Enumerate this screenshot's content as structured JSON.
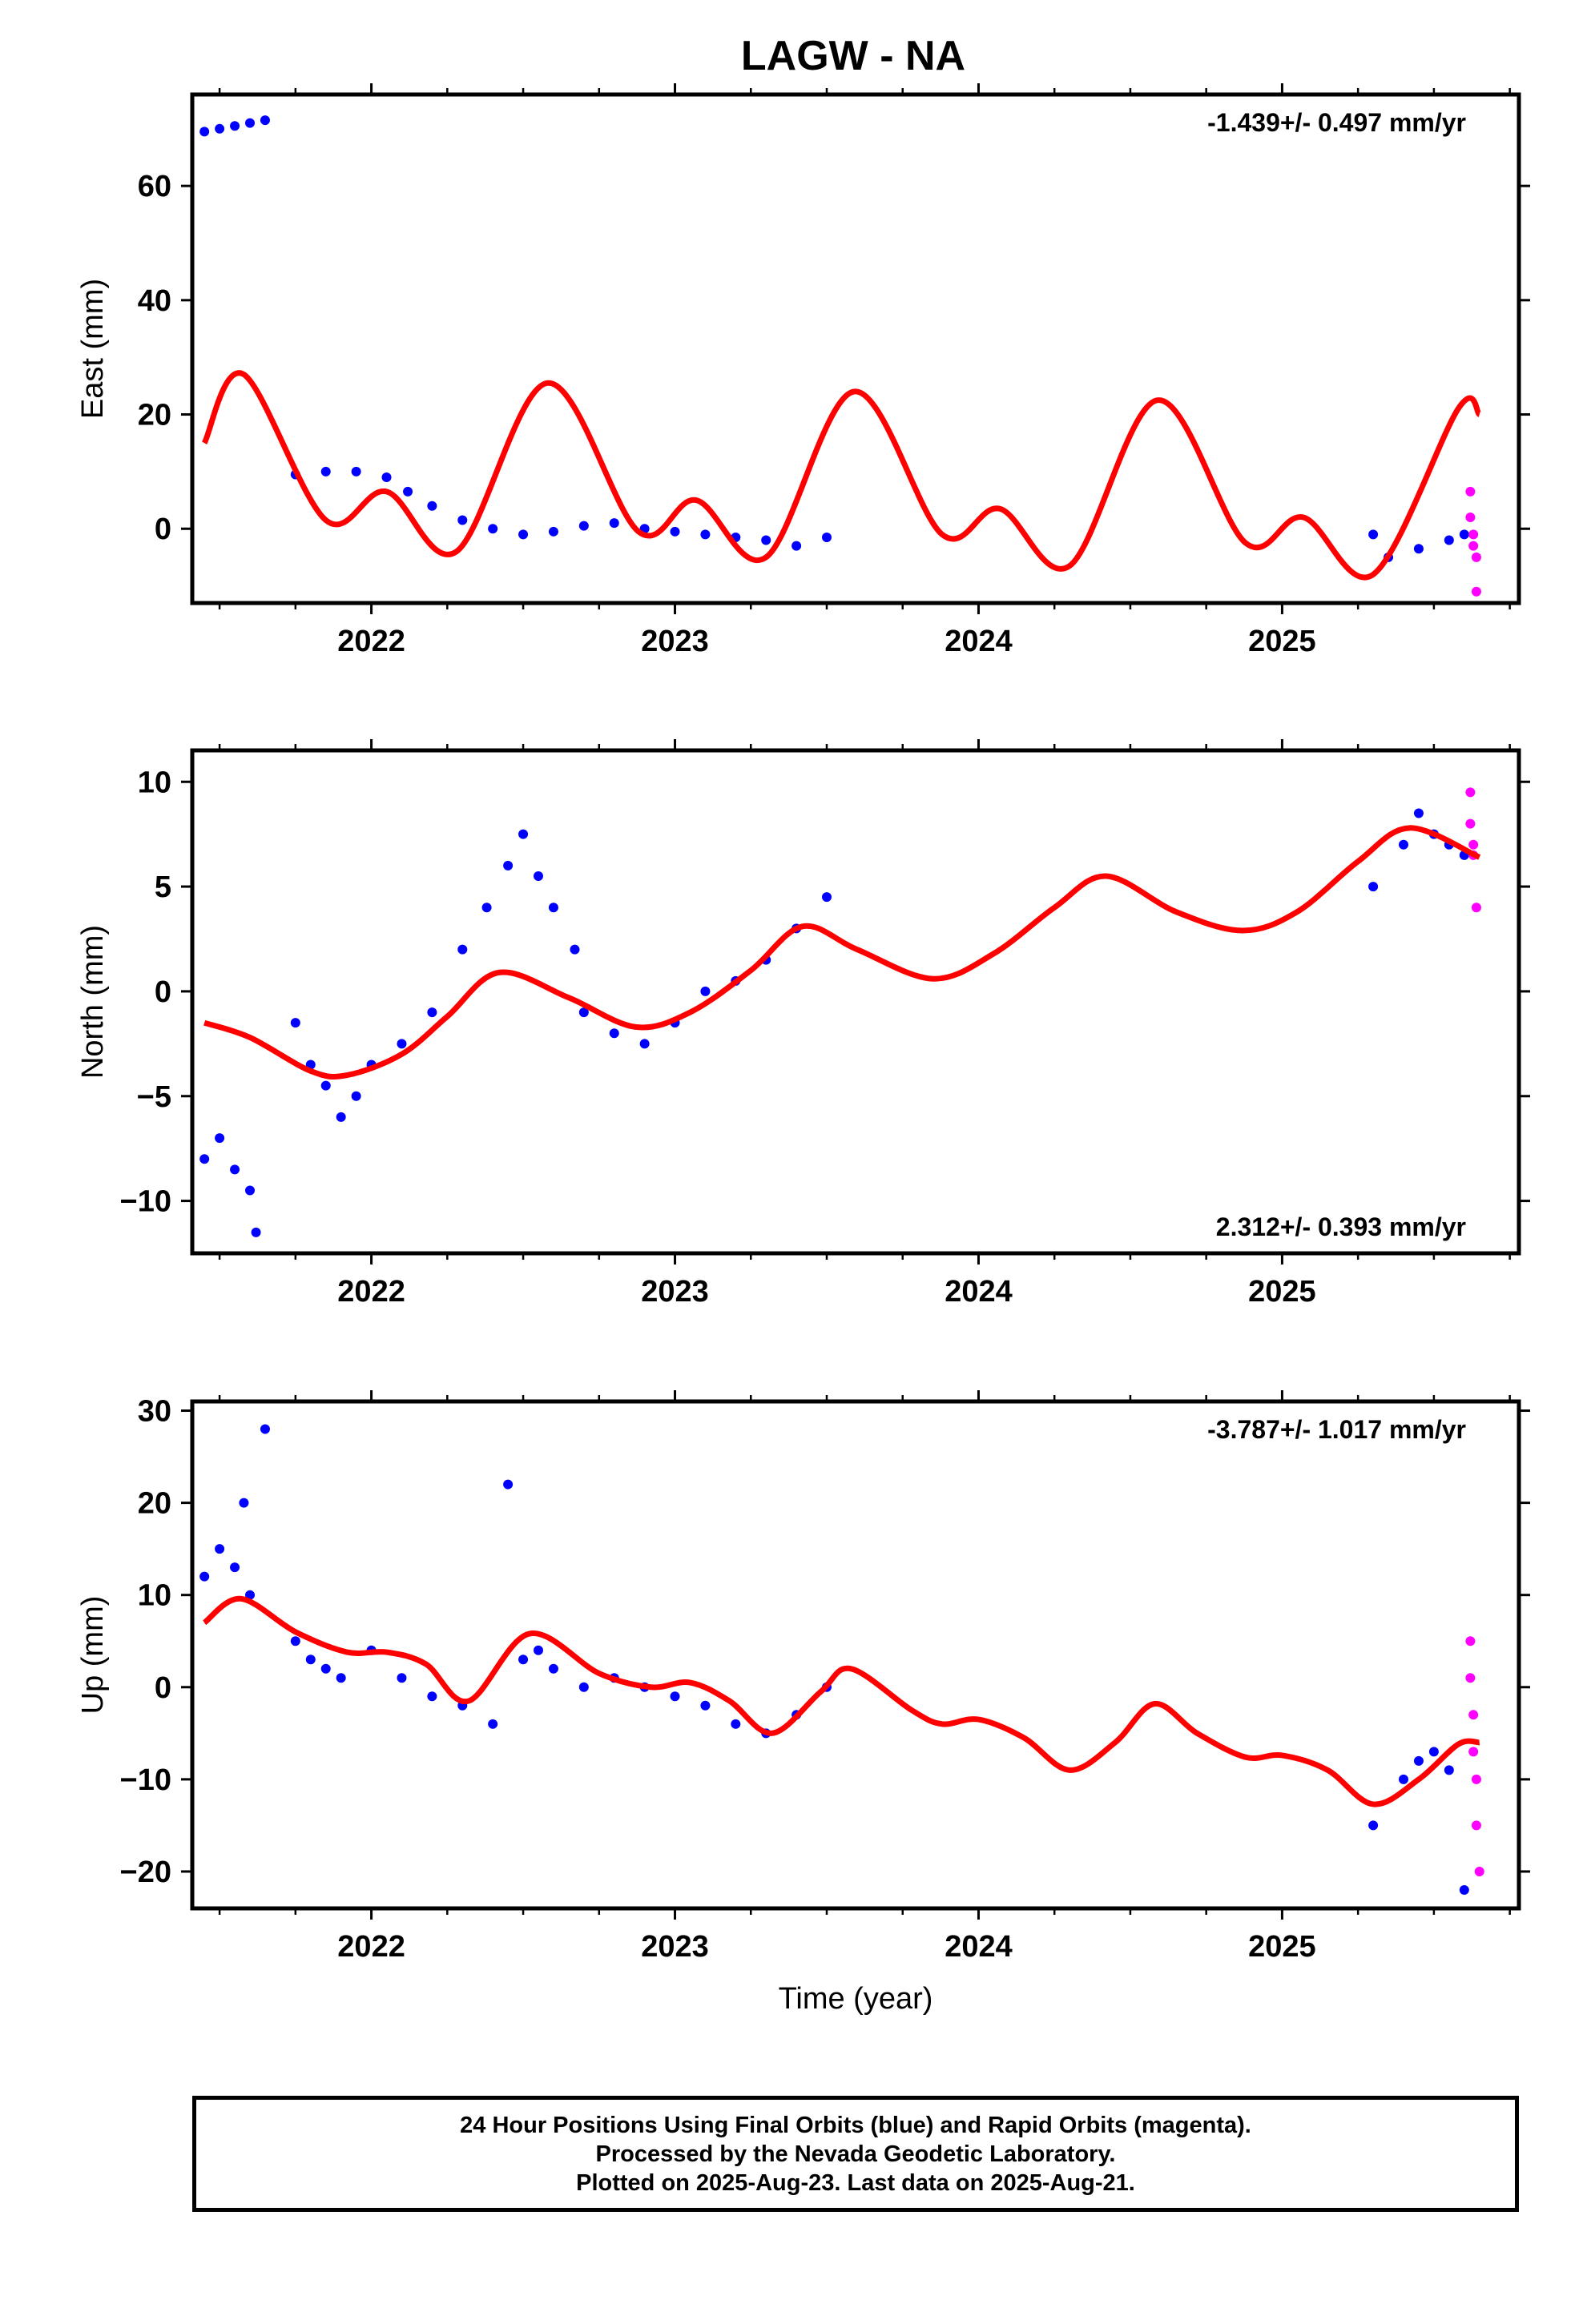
{
  "title": "LAGW - NA",
  "colors": {
    "final": "#0000ff",
    "rapid": "#ff00ff",
    "model": "#ff0000",
    "axis": "#000000"
  },
  "footer": {
    "line1": "24 Hour Positions Using Final Orbits (blue) and Rapid Orbits (magenta).",
    "line2": "Processed by the Nevada Geodetic Laboratory.",
    "line3": "Plotted on 2025-Aug-23. Last data on 2025-Aug-21."
  },
  "chart_data": [
    {
      "type": "scatter",
      "ylabel": "East (mm)",
      "xlabel": "",
      "xlim": [
        2021.41,
        2025.78
      ],
      "ylim": [
        -13,
        76
      ],
      "xticks": [
        2022,
        2023,
        2024,
        2025
      ],
      "yticks": [
        0,
        20,
        40,
        60
      ],
      "rate_text": "-1.439+/- 0.497 mm/yr",
      "rate_position": "top-right",
      "final_orbits": [
        {
          "x": 2021.45,
          "y": 69.5
        },
        {
          "x": 2021.5,
          "y": 70.0
        },
        {
          "x": 2021.55,
          "y": 70.5
        },
        {
          "x": 2021.6,
          "y": 71.0
        },
        {
          "x": 2021.65,
          "y": 71.5
        },
        {
          "x": 2021.75,
          "y": 9.5
        },
        {
          "x": 2021.85,
          "y": 10.0
        },
        {
          "x": 2021.95,
          "y": 10.0
        },
        {
          "x": 2022.05,
          "y": 9.0
        },
        {
          "x": 2022.12,
          "y": 6.5
        },
        {
          "x": 2022.2,
          "y": 4.0
        },
        {
          "x": 2022.3,
          "y": 1.5
        },
        {
          "x": 2022.4,
          "y": 0.0
        },
        {
          "x": 2022.5,
          "y": -1.0
        },
        {
          "x": 2022.6,
          "y": -0.5
        },
        {
          "x": 2022.7,
          "y": 0.5
        },
        {
          "x": 2022.8,
          "y": 1.0
        },
        {
          "x": 2022.9,
          "y": 0.0
        },
        {
          "x": 2023.0,
          "y": -0.5
        },
        {
          "x": 2023.1,
          "y": -1.0
        },
        {
          "x": 2023.2,
          "y": -1.5
        },
        {
          "x": 2023.3,
          "y": -2.0
        },
        {
          "x": 2023.4,
          "y": -3.0
        },
        {
          "x": 2023.5,
          "y": -1.5
        },
        {
          "x": 2025.3,
          "y": -1.0
        },
        {
          "x": 2025.35,
          "y": -5.0
        },
        {
          "x": 2025.45,
          "y": -3.5
        },
        {
          "x": 2025.55,
          "y": -2.0
        },
        {
          "x": 2025.6,
          "y": -1.0
        }
      ],
      "rapid_orbits": [
        {
          "x": 2025.62,
          "y": 6.5
        },
        {
          "x": 2025.62,
          "y": 2.0
        },
        {
          "x": 2025.63,
          "y": -1.0
        },
        {
          "x": 2025.63,
          "y": -3.0
        },
        {
          "x": 2025.64,
          "y": -5.0
        },
        {
          "x": 2025.64,
          "y": -11.0
        }
      ],
      "model_curve": [
        {
          "x": 2021.45,
          "y": 15
        },
        {
          "x": 2021.58,
          "y": 27
        },
        {
          "x": 2021.85,
          "y": 1.5
        },
        {
          "x": 2022.05,
          "y": 6.5
        },
        {
          "x": 2022.28,
          "y": -4
        },
        {
          "x": 2022.58,
          "y": 25.5
        },
        {
          "x": 2022.88,
          "y": -0.5
        },
        {
          "x": 2023.07,
          "y": 5
        },
        {
          "x": 2023.3,
          "y": -5
        },
        {
          "x": 2023.59,
          "y": 24
        },
        {
          "x": 2023.88,
          "y": -1
        },
        {
          "x": 2024.07,
          "y": 3.5
        },
        {
          "x": 2024.3,
          "y": -6.5
        },
        {
          "x": 2024.59,
          "y": 22.5
        },
        {
          "x": 2024.88,
          "y": -2.5
        },
        {
          "x": 2025.07,
          "y": 2
        },
        {
          "x": 2025.3,
          "y": -8
        },
        {
          "x": 2025.58,
          "y": 21
        },
        {
          "x": 2025.65,
          "y": 20
        }
      ]
    },
    {
      "type": "scatter",
      "ylabel": "North (mm)",
      "xlabel": "",
      "xlim": [
        2021.41,
        2025.78
      ],
      "ylim": [
        -12.5,
        11.5
      ],
      "xticks": [
        2022,
        2023,
        2024,
        2025
      ],
      "yticks": [
        -10,
        -5,
        0,
        5,
        10
      ],
      "rate_text": "2.312+/- 0.393 mm/yr",
      "rate_position": "bottom-right",
      "final_orbits": [
        {
          "x": 2021.45,
          "y": -8.0
        },
        {
          "x": 2021.5,
          "y": -7.0
        },
        {
          "x": 2021.55,
          "y": -8.5
        },
        {
          "x": 2021.6,
          "y": -9.5
        },
        {
          "x": 2021.62,
          "y": -11.5
        },
        {
          "x": 2021.75,
          "y": -1.5
        },
        {
          "x": 2021.8,
          "y": -3.5
        },
        {
          "x": 2021.85,
          "y": -4.5
        },
        {
          "x": 2021.9,
          "y": -6.0
        },
        {
          "x": 2021.95,
          "y": -5.0
        },
        {
          "x": 2022.0,
          "y": -3.5
        },
        {
          "x": 2022.1,
          "y": -2.5
        },
        {
          "x": 2022.2,
          "y": -1.0
        },
        {
          "x": 2022.3,
          "y": 2.0
        },
        {
          "x": 2022.38,
          "y": 4.0
        },
        {
          "x": 2022.45,
          "y": 6.0
        },
        {
          "x": 2022.5,
          "y": 7.5
        },
        {
          "x": 2022.55,
          "y": 5.5
        },
        {
          "x": 2022.6,
          "y": 4.0
        },
        {
          "x": 2022.67,
          "y": 2.0
        },
        {
          "x": 2022.7,
          "y": -1.0
        },
        {
          "x": 2022.8,
          "y": -2.0
        },
        {
          "x": 2022.9,
          "y": -2.5
        },
        {
          "x": 2023.0,
          "y": -1.5
        },
        {
          "x": 2023.1,
          "y": 0.0
        },
        {
          "x": 2023.2,
          "y": 0.5
        },
        {
          "x": 2023.3,
          "y": 1.5
        },
        {
          "x": 2023.4,
          "y": 3.0
        },
        {
          "x": 2023.5,
          "y": 4.5
        },
        {
          "x": 2025.3,
          "y": 5.0
        },
        {
          "x": 2025.4,
          "y": 7.0
        },
        {
          "x": 2025.45,
          "y": 8.5
        },
        {
          "x": 2025.5,
          "y": 7.5
        },
        {
          "x": 2025.55,
          "y": 7.0
        },
        {
          "x": 2025.6,
          "y": 6.5
        }
      ],
      "rapid_orbits": [
        {
          "x": 2025.62,
          "y": 9.5
        },
        {
          "x": 2025.62,
          "y": 8.0
        },
        {
          "x": 2025.63,
          "y": 7.0
        },
        {
          "x": 2025.63,
          "y": 6.5
        },
        {
          "x": 2025.64,
          "y": 4.0
        }
      ],
      "model_curve": [
        {
          "x": 2021.45,
          "y": -1.5
        },
        {
          "x": 2021.6,
          "y": -2.2
        },
        {
          "x": 2021.8,
          "y": -3.8
        },
        {
          "x": 2021.92,
          "y": -4.0
        },
        {
          "x": 2022.1,
          "y": -3.0
        },
        {
          "x": 2022.25,
          "y": -1.2
        },
        {
          "x": 2022.42,
          "y": 0.9
        },
        {
          "x": 2022.65,
          "y": -0.3
        },
        {
          "x": 2022.87,
          "y": -1.7
        },
        {
          "x": 2023.05,
          "y": -1.0
        },
        {
          "x": 2023.25,
          "y": 1.0
        },
        {
          "x": 2023.42,
          "y": 3.1
        },
        {
          "x": 2023.6,
          "y": 2.0
        },
        {
          "x": 2023.85,
          "y": 0.6
        },
        {
          "x": 2024.05,
          "y": 1.8
        },
        {
          "x": 2024.25,
          "y": 4.0
        },
        {
          "x": 2024.42,
          "y": 5.5
        },
        {
          "x": 2024.65,
          "y": 3.8
        },
        {
          "x": 2024.87,
          "y": 2.9
        },
        {
          "x": 2025.05,
          "y": 3.8
        },
        {
          "x": 2025.25,
          "y": 6.2
        },
        {
          "x": 2025.42,
          "y": 7.8
        },
        {
          "x": 2025.65,
          "y": 6.4
        }
      ]
    },
    {
      "type": "scatter",
      "ylabel": "Up (mm)",
      "xlabel": "Time (year)",
      "xlim": [
        2021.41,
        2025.78
      ],
      "ylim": [
        -24,
        31
      ],
      "xticks": [
        2022,
        2023,
        2024,
        2025
      ],
      "yticks": [
        -20,
        -10,
        0,
        10,
        20,
        30
      ],
      "rate_text": "-3.787+/- 1.017 mm/yr",
      "rate_position": "top-right",
      "final_orbits": [
        {
          "x": 2021.45,
          "y": 12.0
        },
        {
          "x": 2021.5,
          "y": 15.0
        },
        {
          "x": 2021.55,
          "y": 13.0
        },
        {
          "x": 2021.58,
          "y": 20.0
        },
        {
          "x": 2021.6,
          "y": 10.0
        },
        {
          "x": 2021.65,
          "y": 28.0
        },
        {
          "x": 2021.75,
          "y": 5.0
        },
        {
          "x": 2021.8,
          "y": 3.0
        },
        {
          "x": 2021.85,
          "y": 2.0
        },
        {
          "x": 2021.9,
          "y": 1.0
        },
        {
          "x": 2022.0,
          "y": 4.0
        },
        {
          "x": 2022.1,
          "y": 1.0
        },
        {
          "x": 2022.2,
          "y": -1.0
        },
        {
          "x": 2022.3,
          "y": -2.0
        },
        {
          "x": 2022.4,
          "y": -4.0
        },
        {
          "x": 2022.45,
          "y": 22.0
        },
        {
          "x": 2022.5,
          "y": 3.0
        },
        {
          "x": 2022.55,
          "y": 4.0
        },
        {
          "x": 2022.6,
          "y": 2.0
        },
        {
          "x": 2022.7,
          "y": 0.0
        },
        {
          "x": 2022.8,
          "y": 1.0
        },
        {
          "x": 2022.9,
          "y": 0.0
        },
        {
          "x": 2023.0,
          "y": -1.0
        },
        {
          "x": 2023.1,
          "y": -2.0
        },
        {
          "x": 2023.2,
          "y": -4.0
        },
        {
          "x": 2023.3,
          "y": -5.0
        },
        {
          "x": 2023.4,
          "y": -3.0
        },
        {
          "x": 2023.5,
          "y": 0.0
        },
        {
          "x": 2025.3,
          "y": -15.0
        },
        {
          "x": 2025.4,
          "y": -10.0
        },
        {
          "x": 2025.45,
          "y": -8.0
        },
        {
          "x": 2025.5,
          "y": -7.0
        },
        {
          "x": 2025.55,
          "y": -9.0
        },
        {
          "x": 2025.6,
          "y": -22.0
        }
      ],
      "rapid_orbits": [
        {
          "x": 2025.62,
          "y": 5.0
        },
        {
          "x": 2025.62,
          "y": 1.0
        },
        {
          "x": 2025.63,
          "y": -3.0
        },
        {
          "x": 2025.63,
          "y": -7.0
        },
        {
          "x": 2025.64,
          "y": -10.0
        },
        {
          "x": 2025.64,
          "y": -15.0
        },
        {
          "x": 2025.65,
          "y": -20.0
        }
      ],
      "model_curve": [
        {
          "x": 2021.45,
          "y": 7
        },
        {
          "x": 2021.57,
          "y": 9.6
        },
        {
          "x": 2021.75,
          "y": 6
        },
        {
          "x": 2021.92,
          "y": 3.8
        },
        {
          "x": 2022.05,
          "y": 3.8
        },
        {
          "x": 2022.18,
          "y": 2.5
        },
        {
          "x": 2022.32,
          "y": -1.5
        },
        {
          "x": 2022.52,
          "y": 5.8
        },
        {
          "x": 2022.75,
          "y": 1.5
        },
        {
          "x": 2022.92,
          "y": 0.0
        },
        {
          "x": 2023.05,
          "y": 0.5
        },
        {
          "x": 2023.18,
          "y": -1.5
        },
        {
          "x": 2023.32,
          "y": -5.0
        },
        {
          "x": 2023.48,
          "y": -0.5
        },
        {
          "x": 2023.58,
          "y": 2.0
        },
        {
          "x": 2023.78,
          "y": -2.5
        },
        {
          "x": 2023.88,
          "y": -4.0
        },
        {
          "x": 2024.0,
          "y": -3.5
        },
        {
          "x": 2024.15,
          "y": -5.5
        },
        {
          "x": 2024.3,
          "y": -9.0
        },
        {
          "x": 2024.45,
          "y": -6.0
        },
        {
          "x": 2024.58,
          "y": -1.8
        },
        {
          "x": 2024.72,
          "y": -5.0
        },
        {
          "x": 2024.88,
          "y": -7.6
        },
        {
          "x": 2025.0,
          "y": -7.4
        },
        {
          "x": 2025.15,
          "y": -9.0
        },
        {
          "x": 2025.3,
          "y": -12.7
        },
        {
          "x": 2025.45,
          "y": -10.0
        },
        {
          "x": 2025.58,
          "y": -6.2
        },
        {
          "x": 2025.65,
          "y": -6.0
        }
      ]
    }
  ]
}
